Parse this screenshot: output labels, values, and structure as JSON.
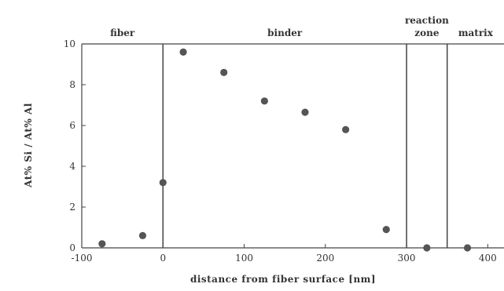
{
  "chart_data": {
    "type": "scatter",
    "title": "",
    "xlabel": "distance from fiber surface [nm]",
    "ylabel": "At% Si / At% Al",
    "xlim": [
      -100,
      420
    ],
    "ylim": [
      0,
      10
    ],
    "xticks": [
      -100,
      0,
      100,
      200,
      300,
      400
    ],
    "yticks": [
      0,
      2,
      4,
      6,
      8,
      10
    ],
    "grid": false,
    "series": [
      {
        "marker": "filled-circle",
        "color": "#555555",
        "points": [
          {
            "x": -75,
            "y": 0.2
          },
          {
            "x": -25,
            "y": 0.6
          },
          {
            "x": 0,
            "y": 3.2
          },
          {
            "x": 25,
            "y": 9.6
          },
          {
            "x": 75,
            "y": 8.6
          },
          {
            "x": 125,
            "y": 7.2
          },
          {
            "x": 175,
            "y": 6.65
          },
          {
            "x": 225,
            "y": 5.8
          },
          {
            "x": 275,
            "y": 0.9
          },
          {
            "x": 325,
            "y": 0.0
          },
          {
            "x": 375,
            "y": 0.0
          }
        ]
      }
    ],
    "boundaries": [
      0,
      300,
      350
    ],
    "regions": [
      {
        "label": "fiber",
        "x_center": -50
      },
      {
        "label": "binder",
        "x_center": 150
      },
      {
        "label": "reaction\nzone",
        "x_center": 325
      },
      {
        "label": "matrix",
        "x_center": 385
      }
    ]
  }
}
